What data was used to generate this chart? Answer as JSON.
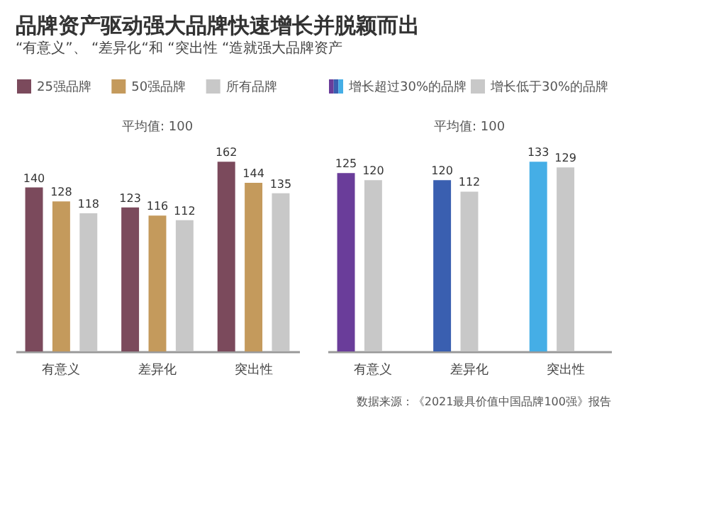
{
  "chart_data": [
    {
      "type": "bar",
      "title": "品牌资产驱动强大品牌快速增长并脱颖而出",
      "subtitle": "“有意义”、 “差异化“和 “突出性 “造就强大品牌资产",
      "categories": [
        "有意义",
        "差异化",
        "突出性"
      ],
      "series": [
        {
          "name": "25强品牌",
          "color": "#7b4a5c",
          "values": [
            140,
            123,
            162
          ]
        },
        {
          "name": "50强品牌",
          "color": "#c49a5c",
          "values": [
            128,
            116,
            144
          ]
        },
        {
          "name": "所有品牌",
          "color": "#c8c8c8",
          "values": [
            118,
            112,
            135
          ]
        }
      ],
      "data_labels": true,
      "legend": "top",
      "tick_labels": "x",
      "annotations": [
        "平均值: 100"
      ]
    },
    {
      "type": "bar",
      "categories": [
        "有意义",
        "差异化",
        "突出性"
      ],
      "series": [
        {
          "name": "增长超过30%的品牌",
          "colors": [
            "#6a3d9a",
            "#3a5fb0",
            "#45aee6"
          ],
          "values": [
            125,
            120,
            133
          ]
        },
        {
          "name": "增长低于30%的品牌",
          "color": "#c8c8c8",
          "values": [
            120,
            112,
            129
          ]
        }
      ],
      "data_labels": true,
      "legend": "top",
      "tick_labels": "x",
      "annotations": [
        "平均值: 100",
        "数据来源：《2021最具价值中国品牌100强》报告"
      ]
    }
  ]
}
